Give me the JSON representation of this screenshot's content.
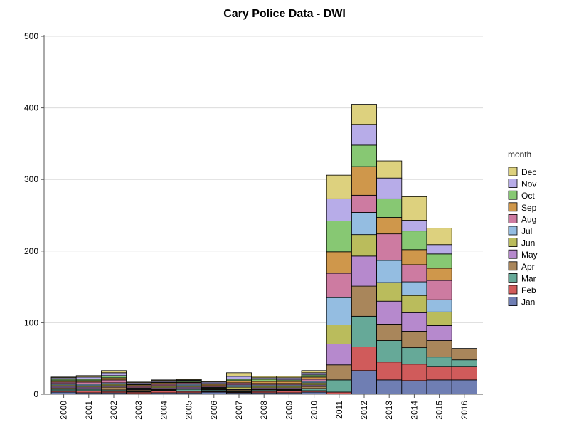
{
  "chart_data": {
    "type": "bar",
    "stacked": true,
    "title": "Cary Police Data - DWI",
    "xlabel": "",
    "ylabel": "",
    "ylim": [
      0,
      500
    ],
    "yticks": [
      0,
      100,
      200,
      300,
      400,
      500
    ],
    "grid": true,
    "legend_title": "month",
    "legend_position": "right",
    "categories": [
      "2000",
      "2001",
      "2002",
      "2003",
      "2004",
      "2005",
      "2006",
      "2007",
      "2008",
      "2009",
      "2010",
      "2011",
      "2012",
      "2013",
      "2014",
      "2015",
      "2016"
    ],
    "series": [
      {
        "name": "Jan",
        "color": "#6F7EB3",
        "values": [
          3,
          2,
          2,
          1,
          2,
          2,
          3,
          2,
          2,
          2,
          3,
          0,
          33,
          20,
          19,
          20,
          20
        ]
      },
      {
        "name": "Feb",
        "color": "#D05B5B",
        "values": [
          2,
          3,
          2,
          2,
          3,
          2,
          1,
          1,
          2,
          3,
          2,
          3,
          33,
          25,
          23,
          19,
          19
        ]
      },
      {
        "name": "Mar",
        "color": "#66A998",
        "values": [
          2,
          2,
          2,
          1,
          1,
          3,
          2,
          1,
          2,
          1,
          3,
          17,
          43,
          30,
          23,
          13,
          9
        ]
      },
      {
        "name": "Apr",
        "color": "#A9865B",
        "values": [
          2,
          1,
          4,
          2,
          1,
          1,
          1,
          2,
          1,
          1,
          3,
          21,
          42,
          23,
          23,
          23,
          16
        ]
      },
      {
        "name": "May",
        "color": "#B689CD",
        "values": [
          2,
          2,
          2,
          1,
          2,
          2,
          1,
          1,
          2,
          2,
          2,
          29,
          42,
          32,
          26,
          21,
          0
        ]
      },
      {
        "name": "Jun",
        "color": "#BABC5C",
        "values": [
          2,
          2,
          2,
          1,
          2,
          2,
          1,
          3,
          2,
          2,
          3,
          27,
          30,
          26,
          24,
          19,
          0
        ]
      },
      {
        "name": "Jul",
        "color": "#94BDE1",
        "values": [
          2,
          2,
          2,
          1,
          1,
          2,
          1,
          3,
          2,
          2,
          2,
          38,
          31,
          31,
          19,
          17,
          0
        ]
      },
      {
        "name": "Aug",
        "color": "#CD7BA1",
        "values": [
          2,
          3,
          4,
          2,
          2,
          2,
          2,
          3,
          2,
          2,
          3,
          34,
          24,
          37,
          24,
          27,
          0
        ]
      },
      {
        "name": "Sep",
        "color": "#CF974B",
        "values": [
          2,
          2,
          3,
          2,
          2,
          1,
          2,
          3,
          3,
          3,
          3,
          30,
          40,
          23,
          21,
          17,
          0
        ]
      },
      {
        "name": "Oct",
        "color": "#87C873",
        "values": [
          2,
          2,
          3,
          1,
          1,
          2,
          1,
          2,
          3,
          2,
          3,
          43,
          30,
          26,
          26,
          20,
          0
        ]
      },
      {
        "name": "Nov",
        "color": "#B7ACE8",
        "values": [
          2,
          3,
          4,
          2,
          2,
          1,
          2,
          4,
          2,
          3,
          3,
          31,
          29,
          29,
          15,
          13,
          0
        ]
      },
      {
        "name": "Dec",
        "color": "#DDD17E",
        "values": [
          1,
          2,
          3,
          1,
          1,
          1,
          1,
          5,
          2,
          2,
          3,
          33,
          28,
          24,
          33,
          23,
          0
        ]
      }
    ]
  }
}
